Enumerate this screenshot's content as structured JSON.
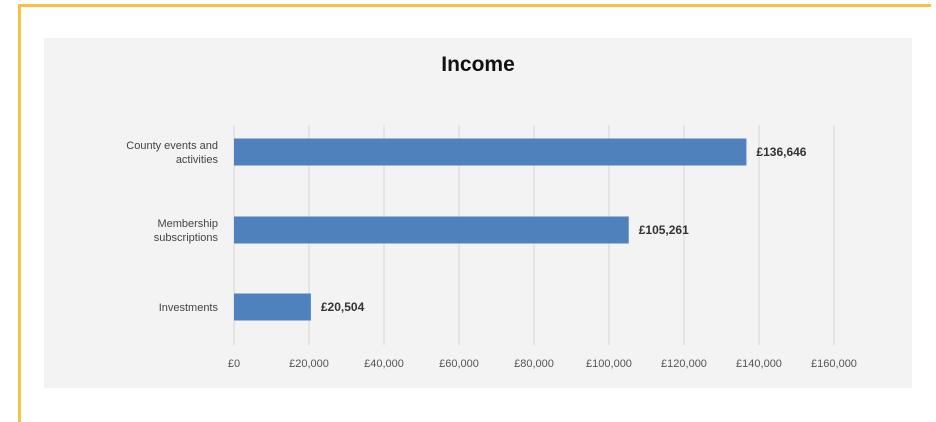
{
  "chart_data": {
    "type": "bar",
    "orientation": "horizontal",
    "title": "Income",
    "categories": [
      [
        "County events and",
        "activities"
      ],
      [
        "Membership",
        "subscriptions"
      ],
      [
        "Investments"
      ]
    ],
    "values": [
      136646,
      105261,
      20504
    ],
    "data_labels": [
      "£136,646",
      "£105,261",
      "£20,504"
    ],
    "xlim": [
      0,
      160000
    ],
    "x_ticks": [
      0,
      20000,
      40000,
      60000,
      80000,
      100000,
      120000,
      140000,
      160000
    ],
    "x_tick_labels": [
      "£0",
      "£20,000",
      "£40,000",
      "£60,000",
      "£80,000",
      "£100,000",
      "£120,000",
      "£140,000",
      "£160,000"
    ],
    "grid": true,
    "legend": "none",
    "bar_color": "#4f81bd"
  },
  "colors": {
    "frame_accent": "#f5c242",
    "plot_background": "#f3f3f3",
    "gridline": "#d4d4d4"
  }
}
